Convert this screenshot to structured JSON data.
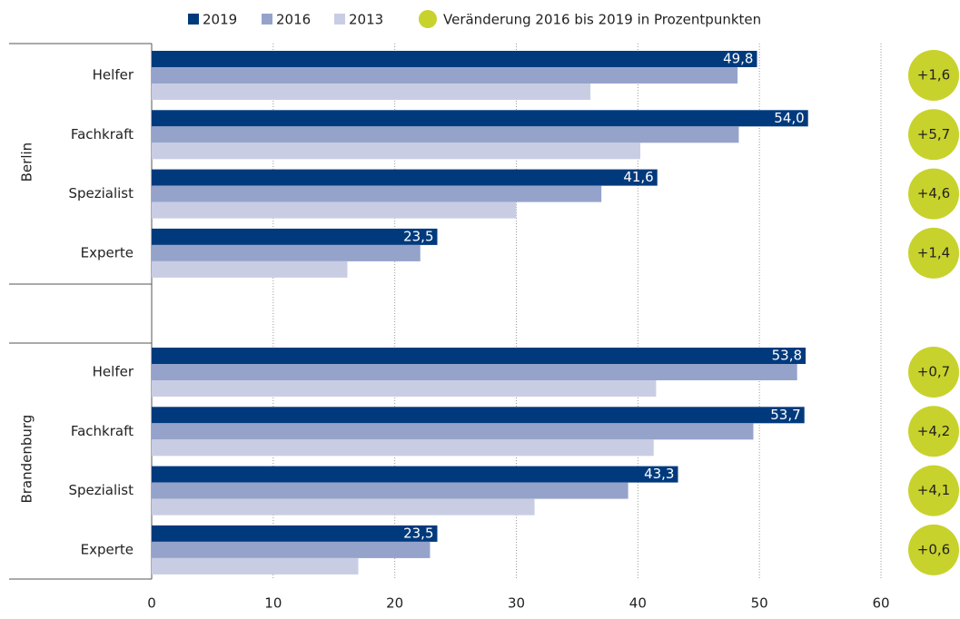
{
  "chart_data": {
    "type": "bar",
    "orientation": "horizontal",
    "category_groups": [
      "Berlin",
      "Brandenburg"
    ],
    "categories": [
      "Helfer",
      "Fachkraft",
      "Spezialist",
      "Experte",
      "Helfer",
      "Fachkraft",
      "Spezialist",
      "Experte"
    ],
    "series": [
      {
        "name": "2019",
        "color": "#003a7d",
        "values": [
          49.8,
          54.0,
          41.6,
          23.5,
          53.8,
          53.7,
          43.3,
          23.5
        ],
        "value_labels": [
          "49,8",
          "54,0",
          "41,6",
          "23,5",
          "53,8",
          "53,7",
          "43,3",
          "23,5"
        ]
      },
      {
        "name": "2016",
        "color": "#95a3cb",
        "values": [
          48.2,
          48.3,
          37.0,
          22.1,
          53.1,
          49.5,
          39.2,
          22.9
        ]
      },
      {
        "name": "2013",
        "color": "#c9cde4",
        "values": [
          36.1,
          40.2,
          30.0,
          16.1,
          41.5,
          41.3,
          31.5,
          17.0
        ]
      }
    ],
    "change": {
      "name": "Veränderung 2016 bis 2019 in Prozentpunkten",
      "color": "#c8d22c",
      "values": [
        1.6,
        5.7,
        4.6,
        1.4,
        0.7,
        4.2,
        4.1,
        0.6
      ],
      "value_labels": [
        "+1,6",
        "+5,7",
        "+4,6",
        "+1,4",
        "+0,7",
        "+4,2",
        "+4,1",
        "+0,6"
      ]
    },
    "xlim": [
      0,
      60
    ],
    "xticks": [
      0,
      10,
      20,
      30,
      40,
      50,
      60
    ],
    "grid": true
  }
}
